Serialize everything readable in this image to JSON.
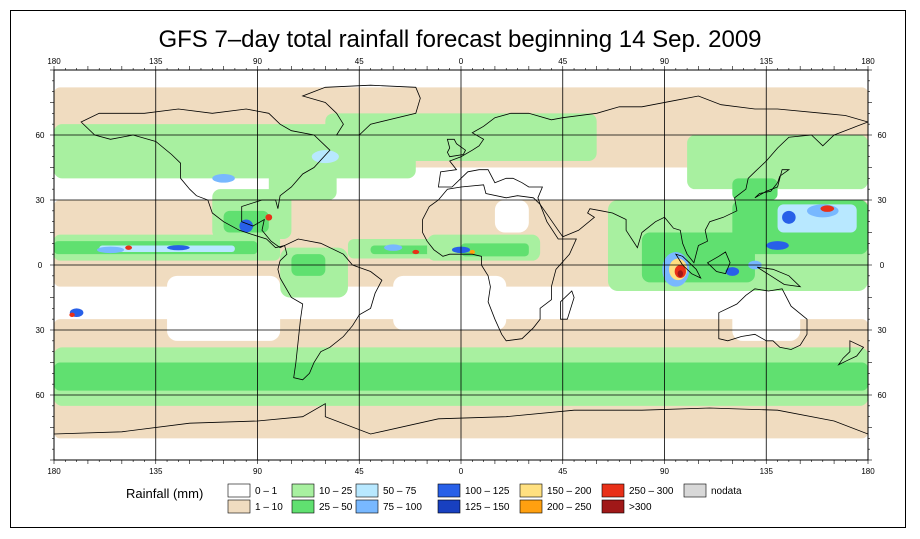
{
  "title": "GFS 7–day total rainfall forecast beginning 14 Sep. 2009",
  "map": {
    "projection": "equirectangular",
    "lon_range": [
      -180,
      180
    ],
    "lat_range": [
      -90,
      90
    ],
    "top_ticks": [
      "180",
      "135",
      "90",
      "45",
      "0",
      "45",
      "90",
      "135",
      "180"
    ],
    "bottom_ticks": [
      "180",
      "135",
      "90",
      "45",
      "0",
      "45",
      "90",
      "135",
      "180"
    ],
    "lat_ticks_left": [
      "60",
      "30",
      "0",
      "30",
      "60"
    ],
    "lat_ticks_right": [
      "60",
      "30",
      "0",
      "30",
      "60"
    ],
    "lat_values": [
      60,
      30,
      0,
      -30,
      -60
    ],
    "lon_values": [
      -180,
      -135,
      -90,
      -45,
      0,
      45,
      90,
      135,
      180
    ],
    "gridlines": true,
    "land_outline_color": "#000000",
    "ocean_color": "#ffffff"
  },
  "legend": {
    "title": "Rainfall (mm)",
    "items": [
      {
        "label": "0 – 1",
        "color": "#ffffff"
      },
      {
        "label": "1 – 10",
        "color": "#f0dcc0"
      },
      {
        "label": "10 – 25",
        "color": "#a8f0a0"
      },
      {
        "label": "25 – 50",
        "color": "#60e070"
      },
      {
        "label": "50 – 75",
        "color": "#b8e8ff"
      },
      {
        "label": "75 – 100",
        "color": "#78b8ff"
      },
      {
        "label": "100 – 125",
        "color": "#2860e8"
      },
      {
        "label": "125 – 150",
        "color": "#1840c0"
      },
      {
        "label": "150 – 200",
        "color": "#ffe080"
      },
      {
        "label": "200 – 250",
        "color": "#ffa010"
      },
      {
        "label": "250 – 300",
        "color": "#e83018"
      },
      {
        "label": ">300",
        "color": "#a01818"
      },
      {
        "label": "nodata",
        "color": "#d8d8d8"
      }
    ]
  }
}
